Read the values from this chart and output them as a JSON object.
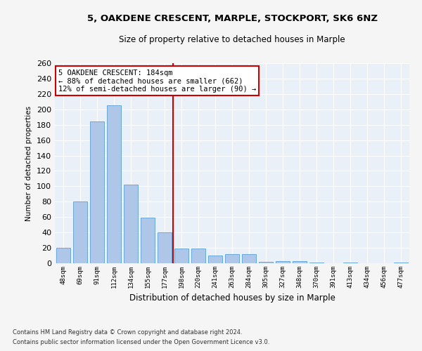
{
  "title": "5, OAKDENE CRESCENT, MARPLE, STOCKPORT, SK6 6NZ",
  "subtitle": "Size of property relative to detached houses in Marple",
  "xlabel": "Distribution of detached houses by size in Marple",
  "ylabel": "Number of detached properties",
  "categories": [
    "48sqm",
    "69sqm",
    "91sqm",
    "112sqm",
    "134sqm",
    "155sqm",
    "177sqm",
    "198sqm",
    "220sqm",
    "241sqm",
    "263sqm",
    "284sqm",
    "305sqm",
    "327sqm",
    "348sqm",
    "370sqm",
    "391sqm",
    "413sqm",
    "434sqm",
    "456sqm",
    "477sqm"
  ],
  "values": [
    20,
    80,
    184,
    205,
    102,
    59,
    40,
    19,
    19,
    10,
    12,
    12,
    2,
    3,
    3,
    1,
    0,
    1,
    0,
    0,
    1
  ],
  "bar_color": "#aec6e8",
  "bar_edge_color": "#5a9fd4",
  "vline_color": "#cc0000",
  "vline_x_index": 6.5,
  "annotation_text": "5 OAKDENE CRESCENT: 184sqm\n← 88% of detached houses are smaller (662)\n12% of semi-detached houses are larger (90) →",
  "annotation_box_color": "#ffffff",
  "annotation_box_edge": "#cc0000",
  "bg_color": "#eaf0f8",
  "grid_color": "#ffffff",
  "fig_bg_color": "#f5f5f5",
  "ylim": [
    0,
    260
  ],
  "yticks": [
    0,
    20,
    40,
    60,
    80,
    100,
    120,
    140,
    160,
    180,
    200,
    220,
    240,
    260
  ],
  "footer1": "Contains HM Land Registry data © Crown copyright and database right 2024.",
  "footer2": "Contains public sector information licensed under the Open Government Licence v3.0."
}
